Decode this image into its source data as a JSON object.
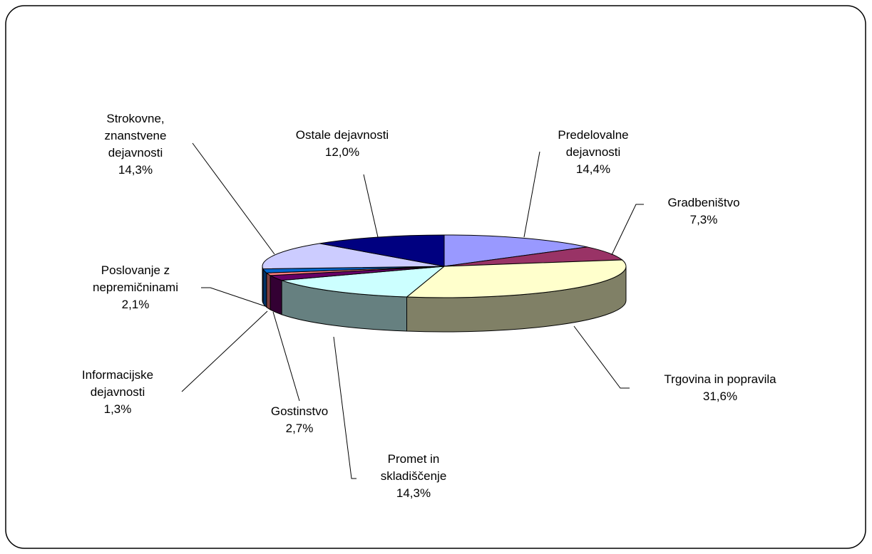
{
  "chart_data": {
    "type": "pie3d",
    "categories": [
      "Predelovalne dejavnosti",
      "Gradbeništvo",
      "Trgovina in popravila",
      "Promet in skladiščenje",
      "Gostinstvo",
      "Informacijske dejavnosti",
      "Poslovanje z nepremičninami",
      "Strokovne, znanstvene dejavnosti",
      "Ostale dejavnosti"
    ],
    "values": [
      14.4,
      7.3,
      31.6,
      14.3,
      2.7,
      1.3,
      2.1,
      14.3,
      12.0
    ],
    "value_labels": [
      "14,4%",
      "7,3%",
      "31,6%",
      "14,3%",
      "2,7%",
      "1,3%",
      "2,1%",
      "14,3%",
      "12,0%"
    ],
    "colors": [
      "#9999ff",
      "#993366",
      "#ffffcc",
      "#ccffff",
      "#660066",
      "#ff8080",
      "#0066cc",
      "#ccccff",
      "#000080"
    ]
  }
}
